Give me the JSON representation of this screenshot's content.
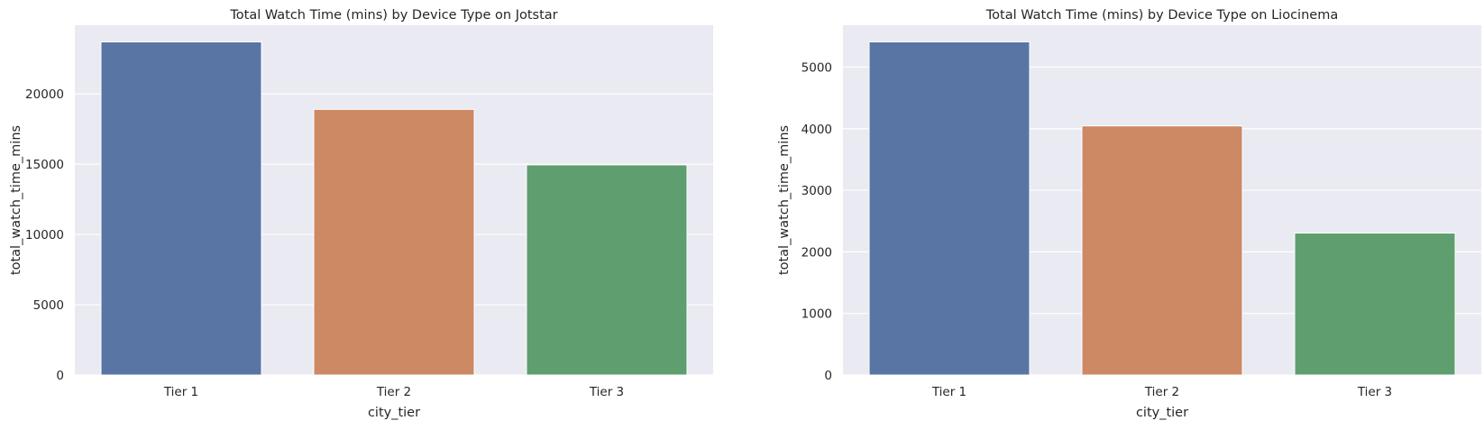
{
  "chart_data": [
    {
      "type": "bar",
      "title": "Total Watch Time (mins) by Device Type on Jotstar",
      "xlabel": "city_tier",
      "ylabel": "total_watch_time_mins",
      "categories": [
        "Tier 1",
        "Tier 2",
        "Tier 3"
      ],
      "values": [
        23700,
        18900,
        14950
      ],
      "colors": [
        "#5975a4",
        "#cc8963",
        "#5f9e6e"
      ],
      "ylim": [
        0,
        24885
      ],
      "yticks": [
        0,
        5000,
        10000,
        15000,
        20000
      ],
      "grid": true,
      "background": "#eaeaf2"
    },
    {
      "type": "bar",
      "title": "Total Watch Time (mins) by Device Type on Liocinema",
      "xlabel": "city_tier",
      "ylabel": "total_watch_time_mins",
      "categories": [
        "Tier 1",
        "Tier 2",
        "Tier 3"
      ],
      "values": [
        5410,
        4045,
        2305
      ],
      "colors": [
        "#5975a4",
        "#cc8963",
        "#5f9e6e"
      ],
      "ylim": [
        0,
        5680
      ],
      "yticks": [
        0,
        1000,
        2000,
        3000,
        4000,
        5000
      ],
      "grid": true,
      "background": "#eaeaf2"
    }
  ]
}
